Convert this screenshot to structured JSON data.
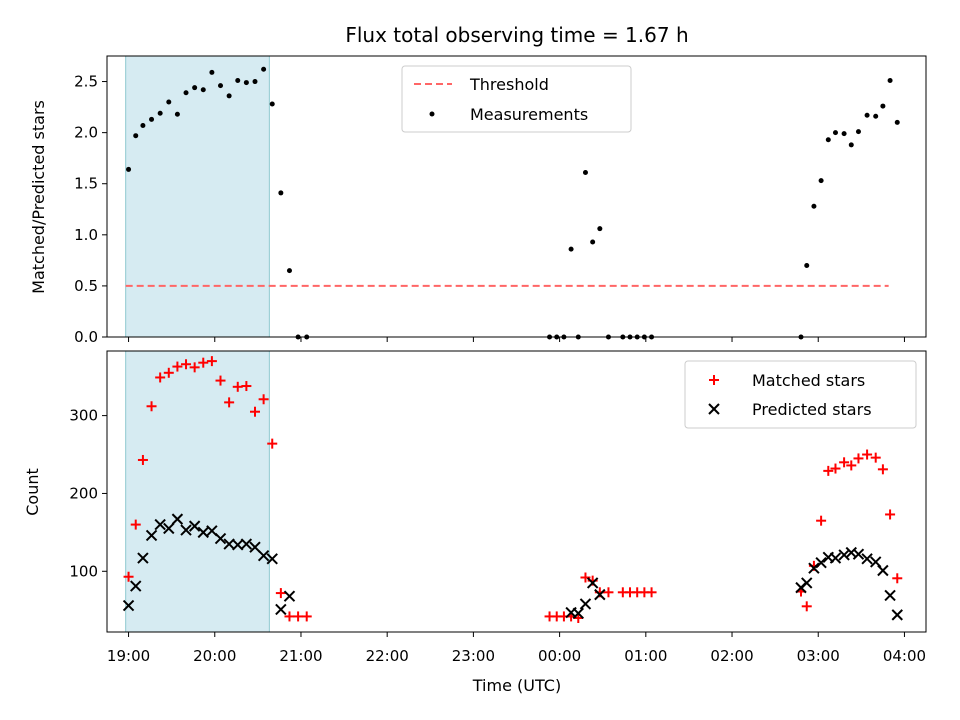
{
  "chart_data": [
    {
      "type": "scatter",
      "title": "Flux total observing time = 1.67 h",
      "xlabel": "",
      "ylabel": "Matched/Predicted stars",
      "xlim": [
        "18:45",
        "04:15"
      ],
      "ylim": [
        0,
        2.75
      ],
      "yticks": [
        "0.0",
        "0.5",
        "1.0",
        "1.5",
        "2.0",
        "2.5"
      ],
      "shaded_region": {
        "start": "18:58",
        "end": "20:38",
        "color": "#add8e6"
      },
      "legend_position": "top-center",
      "series": [
        {
          "name": "Threshold",
          "style": "dashed-line",
          "color": "#ff6666",
          "points": [
            [
              "18:58",
              0.5
            ],
            [
              "03:49",
              0.5
            ]
          ]
        },
        {
          "name": "Measurements",
          "style": "dot",
          "color": "#000000",
          "points": [
            [
              "19:00",
              1.64
            ],
            [
              "19:05",
              1.97
            ],
            [
              "19:10",
              2.07
            ],
            [
              "19:16",
              2.13
            ],
            [
              "19:22",
              2.19
            ],
            [
              "19:28",
              2.3
            ],
            [
              "19:34",
              2.18
            ],
            [
              "19:40",
              2.39
            ],
            [
              "19:46",
              2.44
            ],
            [
              "19:52",
              2.42
            ],
            [
              "19:58",
              2.59
            ],
            [
              "20:04",
              2.46
            ],
            [
              "20:10",
              2.36
            ],
            [
              "20:16",
              2.51
            ],
            [
              "20:22",
              2.49
            ],
            [
              "20:28",
              2.5
            ],
            [
              "20:34",
              2.62
            ],
            [
              "20:40",
              2.28
            ],
            [
              "20:46",
              1.41
            ],
            [
              "20:52",
              0.65
            ],
            [
              "20:58",
              0.0
            ],
            [
              "21:04",
              0.0
            ],
            [
              "23:53",
              0.0
            ],
            [
              "23:58",
              0.0
            ],
            [
              "00:03",
              0.0
            ],
            [
              "00:08",
              0.86
            ],
            [
              "00:13",
              0.0
            ],
            [
              "00:18",
              1.61
            ],
            [
              "00:23",
              0.93
            ],
            [
              "00:28",
              1.06
            ],
            [
              "00:34",
              0.0
            ],
            [
              "00:44",
              0.0
            ],
            [
              "00:49",
              0.0
            ],
            [
              "00:54",
              0.0
            ],
            [
              "00:59",
              0.0
            ],
            [
              "01:04",
              0.0
            ],
            [
              "02:48",
              0.0
            ],
            [
              "02:52",
              0.7
            ],
            [
              "02:57",
              1.28
            ],
            [
              "03:02",
              1.53
            ],
            [
              "03:07",
              1.93
            ],
            [
              "03:12",
              2.0
            ],
            [
              "03:18",
              1.99
            ],
            [
              "03:23",
              1.88
            ],
            [
              "03:28",
              2.01
            ],
            [
              "03:34",
              2.17
            ],
            [
              "03:40",
              2.16
            ],
            [
              "03:45",
              2.26
            ],
            [
              "03:50",
              2.51
            ],
            [
              "03:55",
              2.1
            ]
          ]
        }
      ]
    },
    {
      "type": "scatter",
      "title": "",
      "xlabel": "Time (UTC)",
      "ylabel": "Count",
      "xlim": [
        "18:45",
        "04:15"
      ],
      "ylim": [
        22,
        383
      ],
      "yticks": [
        "100",
        "200",
        "300"
      ],
      "xticks": [
        "19:00",
        "20:00",
        "21:00",
        "22:00",
        "23:00",
        "00:00",
        "01:00",
        "02:00",
        "03:00",
        "04:00"
      ],
      "shaded_region": {
        "start": "18:58",
        "end": "20:38",
        "color": "#add8e6"
      },
      "legend_position": "top-right",
      "series": [
        {
          "name": "Matched stars",
          "style": "plus",
          "color": "#ff0000",
          "points": [
            [
              "19:00",
              93
            ],
            [
              "19:05",
              160
            ],
            [
              "19:10",
              243
            ],
            [
              "19:16",
              312
            ],
            [
              "19:22",
              349
            ],
            [
              "19:28",
              355
            ],
            [
              "19:34",
              363
            ],
            [
              "19:40",
              366
            ],
            [
              "19:46",
              362
            ],
            [
              "19:52",
              368
            ],
            [
              "19:58",
              370
            ],
            [
              "20:04",
              345
            ],
            [
              "20:10",
              317
            ],
            [
              "20:16",
              337
            ],
            [
              "20:22",
              338
            ],
            [
              "20:28",
              305
            ],
            [
              "20:34",
              321
            ],
            [
              "20:40",
              264
            ],
            [
              "20:46",
              72
            ],
            [
              "20:52",
              42
            ],
            [
              "20:58",
              42
            ],
            [
              "21:04",
              42
            ],
            [
              "23:53",
              42
            ],
            [
              "23:58",
              42
            ],
            [
              "00:03",
              42
            ],
            [
              "00:08",
              42
            ],
            [
              "00:13",
              40
            ],
            [
              "00:18",
              92
            ],
            [
              "00:23",
              88
            ],
            [
              "00:28",
              73
            ],
            [
              "00:34",
              73
            ],
            [
              "00:44",
              73
            ],
            [
              "00:49",
              73
            ],
            [
              "00:54",
              73
            ],
            [
              "00:59",
              73
            ],
            [
              "01:04",
              73
            ],
            [
              "02:48",
              74
            ],
            [
              "02:52",
              55
            ],
            [
              "02:57",
              107
            ],
            [
              "03:02",
              165
            ],
            [
              "03:07",
              229
            ],
            [
              "03:12",
              232
            ],
            [
              "03:18",
              240
            ],
            [
              "03:23",
              236
            ],
            [
              "03:28",
              245
            ],
            [
              "03:34",
              250
            ],
            [
              "03:40",
              246
            ],
            [
              "03:45",
              231
            ],
            [
              "03:50",
              173
            ],
            [
              "03:55",
              91
            ]
          ]
        },
        {
          "name": "Predicted stars",
          "style": "x",
          "color": "#000000",
          "points": [
            [
              "19:00",
              56
            ],
            [
              "19:05",
              81
            ],
            [
              "19:10",
              117
            ],
            [
              "19:16",
              146
            ],
            [
              "19:22",
              160
            ],
            [
              "19:28",
              155
            ],
            [
              "19:34",
              167
            ],
            [
              "19:40",
              153
            ],
            [
              "19:46",
              158
            ],
            [
              "19:52",
              150
            ],
            [
              "19:58",
              152
            ],
            [
              "20:04",
              142
            ],
            [
              "20:10",
              135
            ],
            [
              "20:16",
              134
            ],
            [
              "20:22",
              135
            ],
            [
              "20:28",
              131
            ],
            [
              "20:34",
              120
            ],
            [
              "20:40",
              116
            ],
            [
              "20:46",
              51
            ],
            [
              "20:52",
              68
            ],
            [
              "00:08",
              47
            ],
            [
              "00:13",
              46
            ],
            [
              "00:18",
              58
            ],
            [
              "00:23",
              85
            ],
            [
              "00:28",
              70
            ],
            [
              "02:48",
              79
            ],
            [
              "02:52",
              85
            ],
            [
              "02:57",
              104
            ],
            [
              "03:02",
              111
            ],
            [
              "03:07",
              118
            ],
            [
              "03:12",
              117
            ],
            [
              "03:18",
              121
            ],
            [
              "03:23",
              124
            ],
            [
              "03:28",
              122
            ],
            [
              "03:34",
              116
            ],
            [
              "03:40",
              112
            ],
            [
              "03:45",
              101
            ],
            [
              "03:50",
              69
            ],
            [
              "03:55",
              44
            ]
          ]
        }
      ]
    }
  ]
}
